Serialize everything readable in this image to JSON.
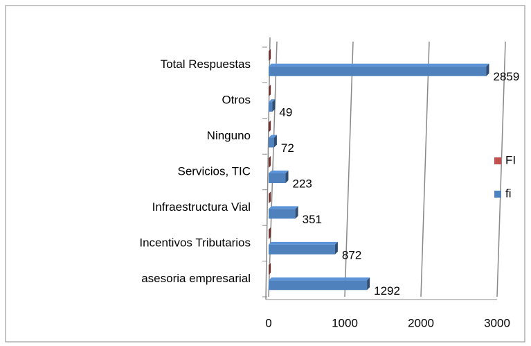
{
  "chart_data": {
    "type": "bar",
    "orientation": "horizontal",
    "three_d": true,
    "categories": [
      "asesoria empresarial",
      "Incentivos Tributarios",
      "Infraestructura Vial",
      "Servicios, TIC",
      "Ninguno",
      "Otros",
      "Total Respuestas"
    ],
    "series": [
      {
        "name": "FI",
        "color": "#c0504d",
        "values": [
          1,
          1,
          1,
          1,
          1,
          1,
          1
        ]
      },
      {
        "name": "fi",
        "color": "#4f81bd",
        "values": [
          1292,
          872,
          351,
          223,
          72,
          49,
          2859
        ]
      }
    ],
    "data_labels_series": 1,
    "xlim": [
      0,
      3000
    ],
    "xticks": [
      0,
      1000,
      2000,
      3000
    ],
    "grid": true,
    "legend": "right"
  }
}
